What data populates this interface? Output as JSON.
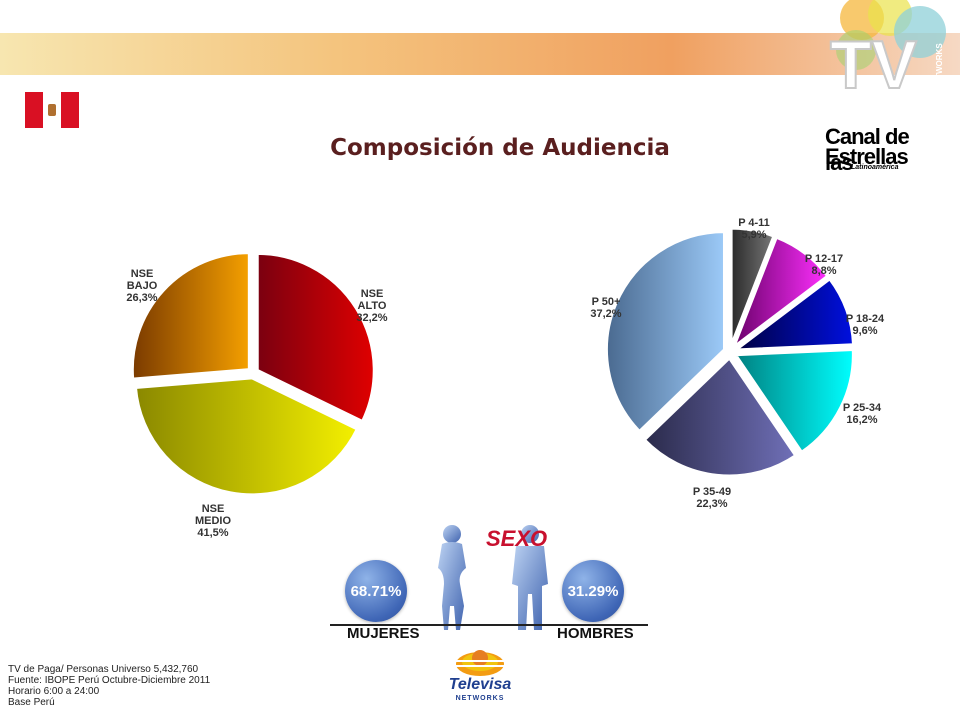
{
  "title": "Composición de Audiencia",
  "brand": {
    "line1": "Canal de las",
    "line2": "Estrellas",
    "sub": "Latinoamérica"
  },
  "tv_logo": {
    "text": "TV",
    "sub": "NETWORKS"
  },
  "colors": {
    "accent_blue": "#3f66b6",
    "sexo_red": "#c8102e",
    "flag_red": "#d91023"
  },
  "chart_data": [
    {
      "type": "pie",
      "title": "",
      "series": [
        {
          "values": [
            32.2,
            41.5,
            26.3
          ],
          "labels": [
            [
              "NSE",
              "ALTO",
              "32,2%"
            ],
            [
              "NSE",
              "MEDIO",
              "41,5%"
            ],
            [
              "NSE",
              "BAJO",
              "26,3%"
            ]
          ],
          "colors": [
            [
              "#e00000",
              "#7a0010"
            ],
            [
              "#f4f000",
              "#8a8800"
            ],
            [
              "#f5a000",
              "#7a3a00"
            ]
          ]
        }
      ]
    },
    {
      "type": "pie",
      "title": "",
      "series": [
        {
          "values": [
            5.9,
            8.8,
            9.6,
            16.2,
            22.3,
            37.2
          ],
          "labels": [
            [
              "P 4-11",
              "5,9%"
            ],
            [
              "P 12-17",
              "8,8%"
            ],
            [
              "P 18-24",
              "9,6%"
            ],
            [
              "P 25-34",
              "16,2%"
            ],
            [
              "P 35-49",
              "22,3%"
            ],
            [
              "P 50+",
              "37,2%"
            ]
          ],
          "colors": [
            [
              "#777777",
              "#2a2a2a"
            ],
            [
              "#ff30ff",
              "#6a006a"
            ],
            [
              "#0010e0",
              "#000040"
            ],
            [
              "#00ffff",
              "#008080"
            ],
            [
              "#7070b8",
              "#2a2a4a"
            ],
            [
              "#9ccaf8",
              "#4a6a90"
            ]
          ]
        }
      ]
    }
  ],
  "sexo": {
    "title": "SEXO",
    "female": {
      "label": "MUJERES",
      "pct": "68.71%"
    },
    "male": {
      "label": "HOMBRES",
      "pct": "31.29%"
    }
  },
  "televisa": {
    "name": "Televisa",
    "sub": "NETWORKS"
  },
  "footnotes": [
    "TV de Paga/ Personas Universo 5,432,760",
    "Fuente: IBOPE Perú Octubre-Diciembre 2011",
    "Horario 6:00 a 24:00",
    "Base Perú"
  ]
}
